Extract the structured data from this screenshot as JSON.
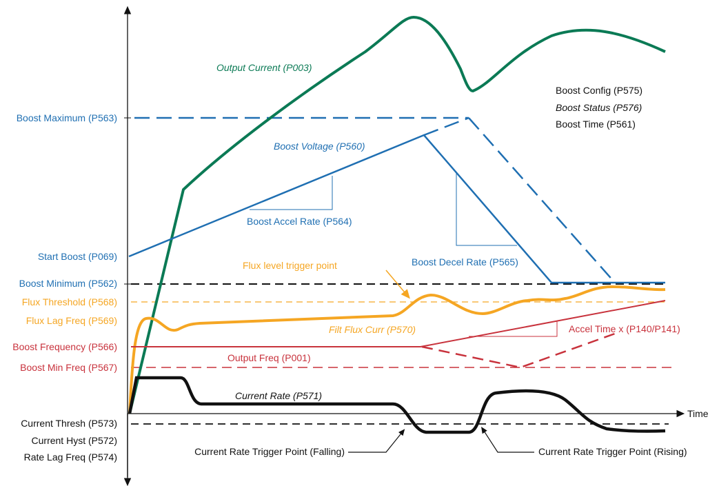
{
  "colors": {
    "blue": "#1f6fb2",
    "green": "#0b7a55",
    "orange": "#f5a623",
    "red": "#c8323c",
    "black": "#111111"
  },
  "axis": {
    "time_label": "Time"
  },
  "left_labels": {
    "boost_maximum": "Boost Maximum (P563)",
    "start_boost": "Start Boost (P069)",
    "boost_minimum": "Boost Minimum (P562)",
    "flux_threshold": "Flux Threshold (P568)",
    "flux_lag_freq": "Flux Lag Freq (P569)",
    "boost_frequency": "Boost Frequency (P566)",
    "boost_min_freq": "Boost Min Freq (P567)",
    "current_thresh": "Current Thresh (P573)",
    "current_hyst": "Current Hyst (P572)",
    "rate_lag_freq": "Rate Lag Freq (P574)"
  },
  "curve_labels": {
    "output_current": "Output Current (P003)",
    "boost_voltage": "Boost Voltage (P560)",
    "boost_accel_rate": "Boost Accel Rate (P564)",
    "boost_decel_rate": "Boost Decel Rate (P565)",
    "flux_trigger_point": "Flux level trigger point",
    "filt_flux_curr": "Filt Flux Curr (P570)",
    "accel_time": "Accel Time x (P140/P141)",
    "output_freq": "Output Freq (P001)",
    "current_rate": "Current Rate (P571)",
    "trigger_falling": "Current Rate Trigger Point (Falling)",
    "trigger_rising": "Current Rate Trigger Point (Rising)"
  },
  "status_block": {
    "boost_config": "Boost Config (P575)",
    "boost_status": "Boost Status (P576)",
    "boost_time": "Boost Time (P561)"
  }
}
